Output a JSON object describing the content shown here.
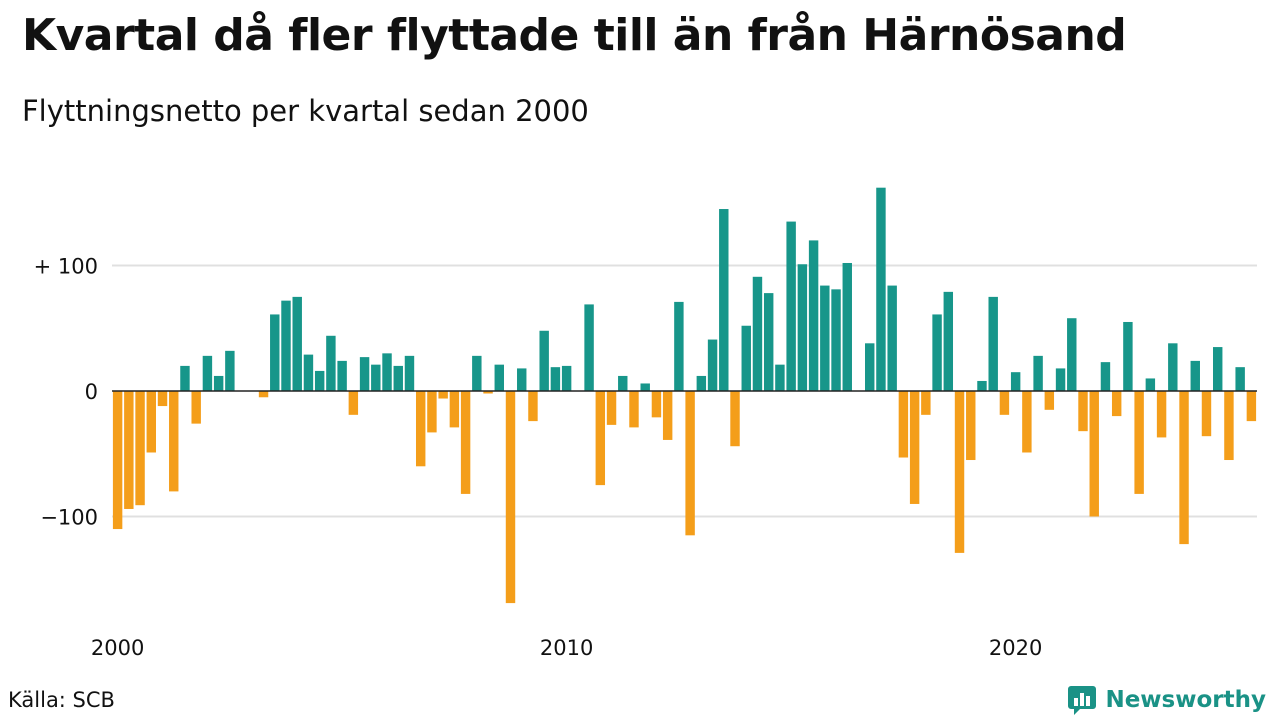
{
  "title": "Kvartal då fler flyttade till än från Härnösand",
  "subtitle": "Flyttningsnetto per kvartal sedan 2000",
  "source": "Källa: SCB",
  "brand": {
    "name": "Newsworthy",
    "logo_icon": "bar-chart-speech-bubble-icon"
  },
  "colors": {
    "positive": "#17968a",
    "negative": "#f49e1a",
    "grid": "#e0e0e0",
    "axis": "#222222",
    "brand": "#1a9286"
  },
  "chart_data": {
    "type": "bar",
    "title": "Kvartal då fler flyttade till än från Härnösand",
    "subtitle": "Flyttningsnetto per kvartal sedan 2000",
    "xlabel": "",
    "ylabel": "",
    "ylim": [
      -175,
      165
    ],
    "yticks": [
      {
        "value": 100,
        "label": "+ 100"
      },
      {
        "value": 0,
        "label": "0"
      },
      {
        "value": -100,
        "label": "−100"
      }
    ],
    "xticks": [
      {
        "index": 0,
        "label": "2000"
      },
      {
        "index": 40,
        "label": "2010"
      },
      {
        "index": 80,
        "label": "2020"
      }
    ],
    "start": "2000 Q1",
    "grid": true,
    "values": [
      -110,
      -94,
      -91,
      -49,
      -12,
      -80,
      20,
      -26,
      28,
      12,
      32,
      0,
      0,
      -5,
      61,
      72,
      75,
      29,
      16,
      44,
      24,
      -19,
      27,
      21,
      30,
      20,
      28,
      -60,
      -33,
      -6,
      -29,
      -82,
      28,
      -2,
      21,
      -169,
      18,
      -24,
      48,
      19,
      20,
      0,
      69,
      -75,
      -27,
      12,
      -29,
      6,
      -21,
      -39,
      71,
      -115,
      12,
      41,
      145,
      -44,
      52,
      91,
      78,
      21,
      135,
      101,
      120,
      84,
      81,
      102,
      0,
      38,
      162,
      84,
      -53,
      -90,
      -19,
      61,
      79,
      -129,
      -55,
      8,
      75,
      -19,
      15,
      -49,
      28,
      -15,
      18,
      58,
      -32,
      -100,
      23,
      -20,
      55,
      -82,
      10,
      -37,
      38,
      -122,
      24,
      -36,
      35,
      -55,
      19,
      -24
    ]
  }
}
